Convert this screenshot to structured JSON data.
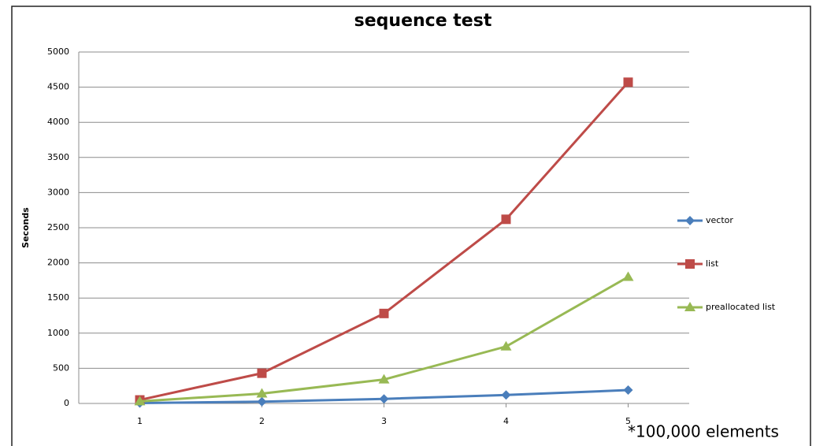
{
  "chart_data": {
    "type": "line",
    "title": "sequence test",
    "ylabel": "Seconds",
    "annotation": "*100,000 elements",
    "x": [
      1,
      2,
      3,
      4,
      5
    ],
    "xlim": [
      0.5,
      5.5
    ],
    "xticks": [
      1,
      2,
      3,
      4,
      5
    ],
    "ylim": [
      0,
      5000
    ],
    "yticks": [
      0,
      500,
      1000,
      1500,
      2000,
      2500,
      3000,
      3500,
      4000,
      4500,
      5000
    ],
    "grid": true,
    "legend": "right",
    "series": [
      {
        "name": "vector",
        "color": "#4a7ebb",
        "marker": "diamond",
        "values": [
          5,
          25,
          65,
          120,
          190
        ]
      },
      {
        "name": "list",
        "color": "#be4b48",
        "marker": "square",
        "values": [
          50,
          430,
          1280,
          2620,
          4570
        ]
      },
      {
        "name": "preallocated list",
        "color": "#98b954",
        "marker": "triangle",
        "values": [
          30,
          140,
          340,
          810,
          1800
        ]
      }
    ]
  }
}
